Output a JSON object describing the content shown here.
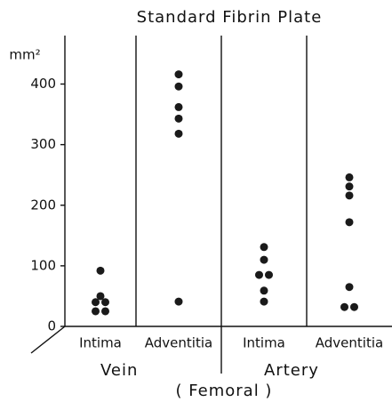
{
  "chart_data": {
    "type": "strip",
    "title": "Standard Fibrin Plate",
    "y_label": "mm²",
    "categories": [
      "Intima",
      "Adventitia",
      "Intima",
      "Adventitia"
    ],
    "groups": [
      "Vein",
      "Artery"
    ],
    "footer": "( Femoral )",
    "values": [
      [
        92,
        50,
        40,
        40,
        25,
        25
      ],
      [
        416,
        396,
        362,
        343,
        318,
        41
      ],
      [
        131,
        110,
        85,
        85,
        59,
        41
      ],
      [
        246,
        231,
        216,
        172,
        65,
        32,
        32
      ]
    ],
    "color": "#1a1a1a",
    "ylim": [
      0,
      480
    ],
    "yticks": [
      0,
      100,
      200,
      300,
      400
    ]
  }
}
